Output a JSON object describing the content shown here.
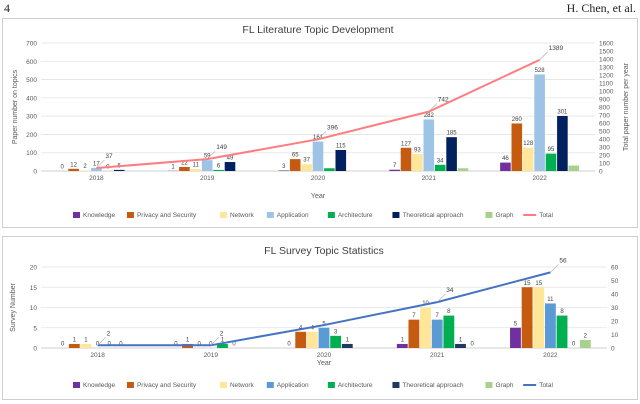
{
  "header": {
    "page_number": "4",
    "author": "H. Chen, et al."
  },
  "chart_data": [
    {
      "type": "bar",
      "title": "FL Literature Topic Development",
      "xlabel": "Year",
      "ylabel": "Paper number on topics",
      "y2label": "Total paper number per year",
      "categories": [
        "2018",
        "2019",
        "2020",
        "2021",
        "2022"
      ],
      "ylim": [
        0,
        700
      ],
      "yticks": [
        "0",
        "100",
        "200",
        "300",
        "400",
        "500",
        "600",
        "700"
      ],
      "y2lim": [
        0,
        1600
      ],
      "y2ticks": [
        "0",
        "100",
        "200",
        "300",
        "400",
        "500",
        "600",
        "700",
        "800",
        "900",
        "1000",
        "1100",
        "1200",
        "1300",
        "1400",
        "1500",
        "1600"
      ],
      "series": [
        {
          "name": "Knowledge",
          "color": "#7030a0",
          "values": [
            0,
            1,
            3,
            7,
            46
          ]
        },
        {
          "name": "Privacy and Security",
          "color": "#c55a11",
          "values": [
            12,
            22,
            65,
            127,
            260
          ]
        },
        {
          "name": "Network",
          "color": "#ffe699",
          "values": [
            2,
            11,
            37,
            93,
            128
          ]
        },
        {
          "name": "Application",
          "color": "#9dc3e6",
          "values": [
            17,
            59,
            161,
            282,
            528
          ]
        },
        {
          "name": "Architecture",
          "color": "#00b050",
          "values": [
            0,
            6,
            15,
            34,
            95
          ]
        },
        {
          "name": "Theoretical approach",
          "color": "#002060",
          "values": [
            6,
            49,
            115,
            185,
            301
          ]
        },
        {
          "name": "Graph",
          "color": "#a9d18e",
          "values": [
            0,
            0,
            0,
            15,
            30
          ]
        }
      ],
      "value_labels": [
        [
          "0",
          "12",
          "2",
          "17",
          "0",
          "6",
          ""
        ],
        [
          "1",
          "22",
          "11",
          "59",
          "6",
          "49",
          ""
        ],
        [
          "3",
          "65",
          "37",
          "161",
          "",
          "115",
          ""
        ],
        [
          "7",
          "127",
          "93",
          "282",
          "34",
          "185",
          ""
        ],
        [
          "46",
          "260",
          "128",
          "528",
          "95",
          "301",
          ""
        ]
      ],
      "total": {
        "name": "Total",
        "color": "#ff7c80",
        "values": [
          37,
          149,
          396,
          742,
          1389
        ]
      },
      "legend_placement": "bottom"
    },
    {
      "type": "bar",
      "title": "FL Survey Topic Statistics",
      "xlabel": "Year",
      "ylabel": "Survey Number",
      "categories": [
        "2018",
        "2019",
        "2020",
        "2021",
        "2022"
      ],
      "ylim": [
        0,
        20
      ],
      "yticks": [
        "0",
        "5",
        "10",
        "15",
        "20"
      ],
      "y2lim": [
        0,
        60
      ],
      "y2ticks": [
        "0",
        "10",
        "20",
        "30",
        "40",
        "50",
        "60"
      ],
      "series": [
        {
          "name": "Knowledge",
          "color": "#7030a0",
          "values": [
            0,
            0,
            0,
            1,
            5
          ]
        },
        {
          "name": "Privacy and Security",
          "color": "#c55a11",
          "values": [
            1,
            1,
            4,
            7,
            15
          ]
        },
        {
          "name": "Network",
          "color": "#ffe699",
          "values": [
            1,
            0,
            4,
            10,
            15
          ]
        },
        {
          "name": "Application",
          "color": "#5b9bd5",
          "values": [
            0,
            0,
            5,
            7,
            11
          ]
        },
        {
          "name": "Architecture",
          "color": "#00b050",
          "values": [
            0,
            1,
            3,
            8,
            8
          ]
        },
        {
          "name": "Theoretical approach",
          "color": "#1f3864",
          "values": [
            0,
            0,
            1,
            1,
            0
          ]
        },
        {
          "name": "Graph",
          "color": "#a9d18e",
          "values": [
            0,
            0,
            0,
            0,
            2
          ]
        }
      ],
      "value_labels": [
        [
          "0",
          "1",
          "1",
          "0",
          "0",
          "0",
          ""
        ],
        [
          "0",
          "1",
          "0",
          "0",
          "1",
          "0",
          ""
        ],
        [
          "0",
          "4",
          "4",
          "5",
          "3",
          "1",
          ""
        ],
        [
          "1",
          "7",
          "10",
          "7",
          "8",
          "1",
          "0"
        ],
        [
          "5",
          "15",
          "15",
          "11",
          "8",
          "0",
          "2"
        ]
      ],
      "total": {
        "name": "Total",
        "color": "#4472c4",
        "values": [
          2,
          2,
          17,
          34,
          56
        ]
      },
      "total_labels": [
        "2",
        "2",
        "",
        "34",
        "56"
      ],
      "legend_placement": "bottom"
    }
  ]
}
